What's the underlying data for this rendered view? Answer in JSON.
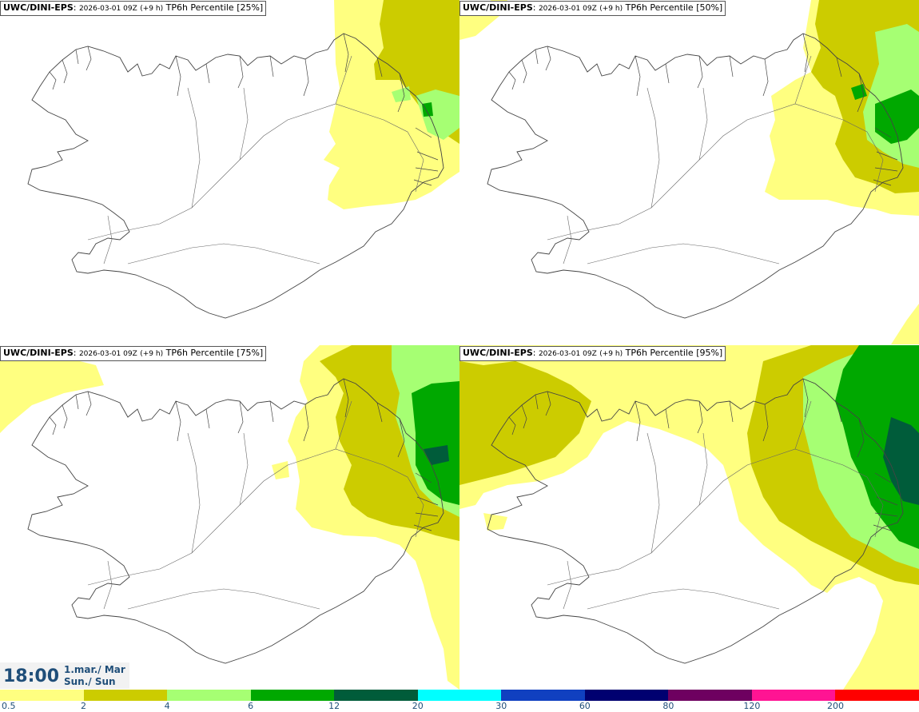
{
  "panels": [
    {
      "source": "UWC/DINI-EPS",
      "run": "2026-03-01 09Z",
      "lead": "(+9 h)",
      "field": "TP6h Percentile [25%]"
    },
    {
      "source": "UWC/DINI-EPS",
      "run": "2026-03-01 09Z",
      "lead": "(+9 h)",
      "field": "TP6h Percentile [50%]"
    },
    {
      "source": "UWC/DINI-EPS",
      "run": "2026-03-01 09Z",
      "lead": "(+9 h)",
      "field": "TP6h Percentile [75%]"
    },
    {
      "source": "UWC/DINI-EPS",
      "run": "2026-03-01 09Z",
      "lead": "(+9 h)",
      "field": "TP6h Percentile [95%]"
    }
  ],
  "valid_time": {
    "time": "18:00",
    "date": "1.mar./ Mar",
    "day": "Sun./ Sun"
  },
  "legend": {
    "labels": [
      "0.5",
      "2",
      "4",
      "6",
      "12",
      "20",
      "30",
      "60",
      "80",
      "120",
      "200"
    ],
    "colors": [
      "#ffff80",
      "#cccc00",
      "#a6ff73",
      "#00a800",
      "#005c3a",
      "#00ffff",
      "#1040c0",
      "#000070",
      "#6e0060",
      "#ff1493",
      "#ff0000"
    ]
  },
  "colors": {
    "light_yellow": "#ffff80",
    "olive": "#cccc00",
    "light_green": "#a6ff73",
    "green": "#00a800",
    "dark_green": "#005c3a",
    "text_blue": "#1f4e79"
  }
}
